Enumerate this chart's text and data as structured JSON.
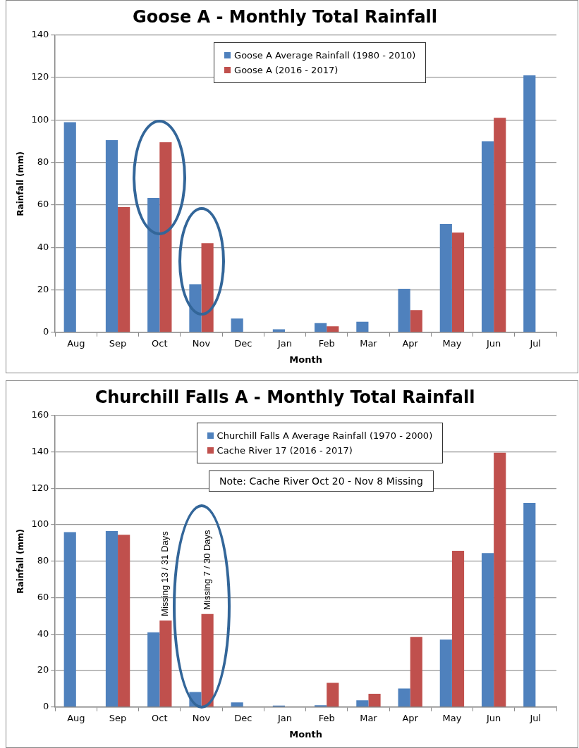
{
  "chart_data": [
    {
      "type": "bar",
      "title": "Goose A - Monthly Total Rainfall",
      "xlabel": "Month",
      "ylabel": "Rainfall (mm)",
      "categories": [
        "Aug",
        "Sep",
        "Oct",
        "Nov",
        "Dec",
        "Jan",
        "Feb",
        "Mar",
        "Apr",
        "May",
        "Jun",
        "Jul"
      ],
      "series": [
        {
          "name": "Goose A Average Rainfall (1980 - 2010)",
          "color": "#4f81bd",
          "values": [
            99,
            90.5,
            63.3,
            22.7,
            6.5,
            1.4,
            4.3,
            5,
            20.5,
            51,
            90,
            121
          ]
        },
        {
          "name": "Goose A (2016 - 2017)",
          "color": "#c0504d",
          "values": [
            null,
            59,
            89.5,
            42,
            null,
            null,
            2.8,
            null,
            10.5,
            47,
            101,
            null
          ]
        }
      ],
      "ylim": [
        0,
        140
      ],
      "yticks": [
        0,
        20,
        40,
        60,
        80,
        100,
        120,
        140
      ],
      "grid": "y",
      "legend": "top"
    },
    {
      "type": "bar",
      "title": "Churchill Falls A - Monthly Total Rainfall",
      "xlabel": "Month",
      "ylabel": "Rainfall (mm)",
      "categories": [
        "Aug",
        "Sep",
        "Oct",
        "Nov",
        "Dec",
        "Jan",
        "Feb",
        "Mar",
        "Apr",
        "May",
        "Jun",
        "Jul"
      ],
      "series": [
        {
          "name": "Churchill Falls A Average Rainfall (1970 - 2000)",
          "color": "#4f81bd",
          "values": [
            96,
            96.5,
            41,
            8.2,
            2.5,
            0.8,
            1,
            3.7,
            10.2,
            37,
            84.5,
            112
          ]
        },
        {
          "name": "Cache River 17 (2016 - 2017)",
          "color": "#c0504d",
          "values": [
            null,
            94.5,
            47.5,
            51,
            null,
            null,
            13.3,
            7.3,
            38.5,
            85.7,
            139.5,
            null
          ]
        }
      ],
      "ylim": [
        0,
        160
      ],
      "yticks": [
        0,
        20,
        40,
        60,
        80,
        100,
        120,
        140,
        160
      ],
      "grid": "y",
      "legend": "top",
      "annotations": [
        "Note: Cache River Oct 20 - Nov 8 Missing",
        {
          "text": "Missing 13 / 31 Days",
          "x": "Oct",
          "y": 47.5
        },
        {
          "text": "Missing 7 / 30 Days",
          "x": "Nov",
          "y": 51
        }
      ]
    }
  ]
}
